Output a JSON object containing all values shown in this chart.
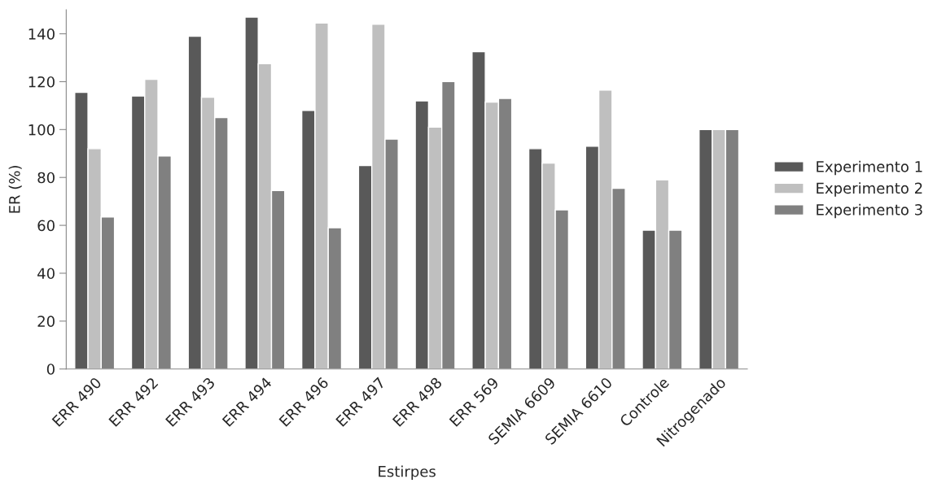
{
  "chart_data": {
    "type": "bar",
    "xlabel": "Estirpes",
    "ylabel": "ER (%)",
    "categories": [
      "ERR 490",
      "ERR 492",
      "ERR 493",
      "ERR 494",
      "ERR 496",
      "ERR 497",
      "ERR 498",
      "ERR 569",
      "SEMIA 6609",
      "SEMIA 6610",
      "Controle",
      "Nitrogenado"
    ],
    "series": [
      {
        "name": "Experimento 1",
        "color": "#595959",
        "values": [
          115.5,
          114,
          139,
          147,
          108,
          85,
          112,
          132.5,
          92,
          93,
          58,
          100
        ]
      },
      {
        "name": "Experimento 2",
        "color": "#bfbfbf",
        "values": [
          92,
          121,
          113.5,
          127.5,
          144.5,
          144,
          101,
          111.5,
          86,
          116.5,
          79,
          100
        ]
      },
      {
        "name": "Experimento 3",
        "color": "#808080",
        "values": [
          63.5,
          89,
          105,
          74.5,
          59,
          96,
          120,
          113,
          66.5,
          75.5,
          58,
          100
        ]
      }
    ],
    "ylim": [
      0,
      150
    ],
    "yticks": [
      0,
      20,
      40,
      60,
      80,
      100,
      120,
      140
    ],
    "grid": false,
    "legend": "right"
  }
}
